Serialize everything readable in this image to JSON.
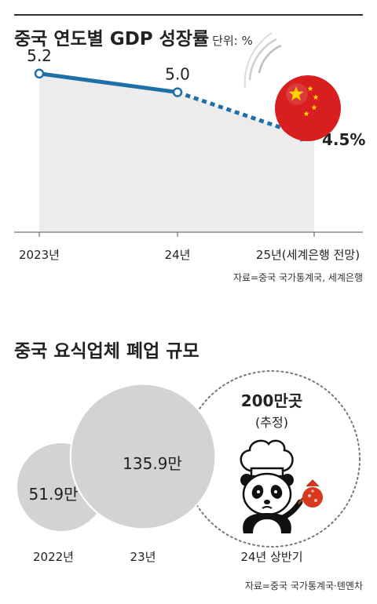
{
  "gdp_section": {
    "title": "중국 연도별 GDP 성장률",
    "unit": "단위: %",
    "source": "자료=중국 국가통계국, 세계은행"
  },
  "restaurant_section": {
    "title": "중국 요식업체 폐업 규모",
    "source": "자료=중국 국가통계국·톈옌차"
  },
  "colors": {
    "line": "#1f6fa8",
    "area": "#ececec",
    "bubble": "#d3d3d3",
    "flag_red": "#d81e1e",
    "flag_star": "#ffd400"
  },
  "icons": [
    "china-flag-ball-icon",
    "panda-chef-icon"
  ],
  "chart_data": [
    {
      "type": "line",
      "categories": [
        "2023년",
        "24년",
        "25년(세계은행 전망)"
      ],
      "values": [
        5.2,
        5.0,
        4.5
      ],
      "value_labels": [
        "5.2",
        "5.0",
        "4.5%"
      ],
      "forecast_from_index": 1,
      "ylim": [
        3.5,
        5.4
      ]
    },
    {
      "type": "bubble",
      "categories": [
        "2022년",
        "23년",
        "24년 상반기"
      ],
      "values": [
        51.9,
        135.9,
        200
      ],
      "value_labels": [
        "51.9만",
        "135.9만",
        "200만곳"
      ],
      "notes": [
        "",
        "",
        "(추정)"
      ]
    }
  ]
}
